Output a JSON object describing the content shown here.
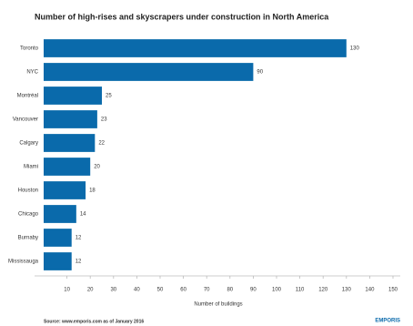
{
  "chart_data": {
    "type": "bar",
    "orientation": "horizontal",
    "title": "Number of high-rises and skyscrapers under construction in North America",
    "categories": [
      "Toronto",
      "NYC",
      "Montréal",
      "Vancouver",
      "Calgary",
      "Miami",
      "Houston",
      "Chicago",
      "Burnaby",
      "Mississauga"
    ],
    "values": [
      130,
      90,
      25,
      23,
      22,
      20,
      18,
      14,
      12,
      12
    ],
    "color": "#0a6aab",
    "xlim": [
      0,
      150
    ],
    "xticks": [
      10,
      20,
      30,
      40,
      50,
      60,
      70,
      80,
      90,
      100,
      110,
      120,
      130,
      140,
      150
    ],
    "x_label": "Number of buildings",
    "source": "Source: www.emporis.com as of January 2016",
    "logo": "EMPORIS"
  }
}
